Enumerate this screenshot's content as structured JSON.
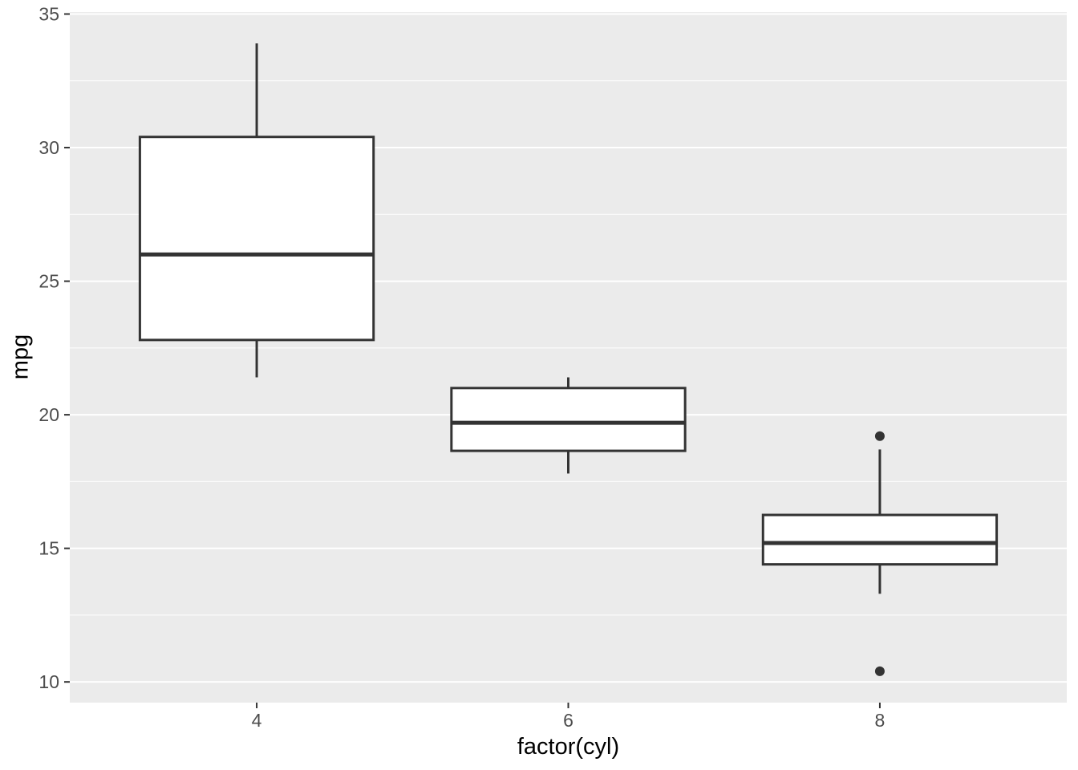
{
  "chart_data": {
    "type": "boxplot",
    "title": "",
    "xlabel": "factor(cyl)",
    "ylabel": "mpg",
    "categories": [
      "4",
      "6",
      "8"
    ],
    "y_major_ticks": [
      10,
      15,
      20,
      25,
      30,
      35
    ],
    "y_minor_ticks": [
      12.5,
      17.5,
      22.5,
      27.5,
      32.5
    ],
    "ylim": [
      9.225,
      35.075
    ],
    "grid": true,
    "legend": false,
    "series": [
      {
        "category": "4",
        "whisker_low": 21.4,
        "q1": 22.8,
        "median": 26.0,
        "q3": 30.4,
        "whisker_high": 33.9,
        "outliers": []
      },
      {
        "category": "6",
        "whisker_low": 17.8,
        "q1": 18.65,
        "median": 19.7,
        "q3": 21.0,
        "whisker_high": 21.4,
        "outliers": []
      },
      {
        "category": "8",
        "whisker_low": 13.3,
        "q1": 14.4,
        "median": 15.2,
        "q3": 16.25,
        "whisker_high": 18.7,
        "outliers": [
          10.4,
          19.2
        ]
      }
    ],
    "style": {
      "panel_background": "#EBEBEB",
      "grid_color": "#FFFFFF",
      "box_fill": "#FFFFFF",
      "box_stroke": "#333333",
      "outlier_color": "#333333",
      "axis_text_color": "#4D4D4D",
      "axis_title_color": "#000000",
      "tick_color": "#333333"
    }
  }
}
